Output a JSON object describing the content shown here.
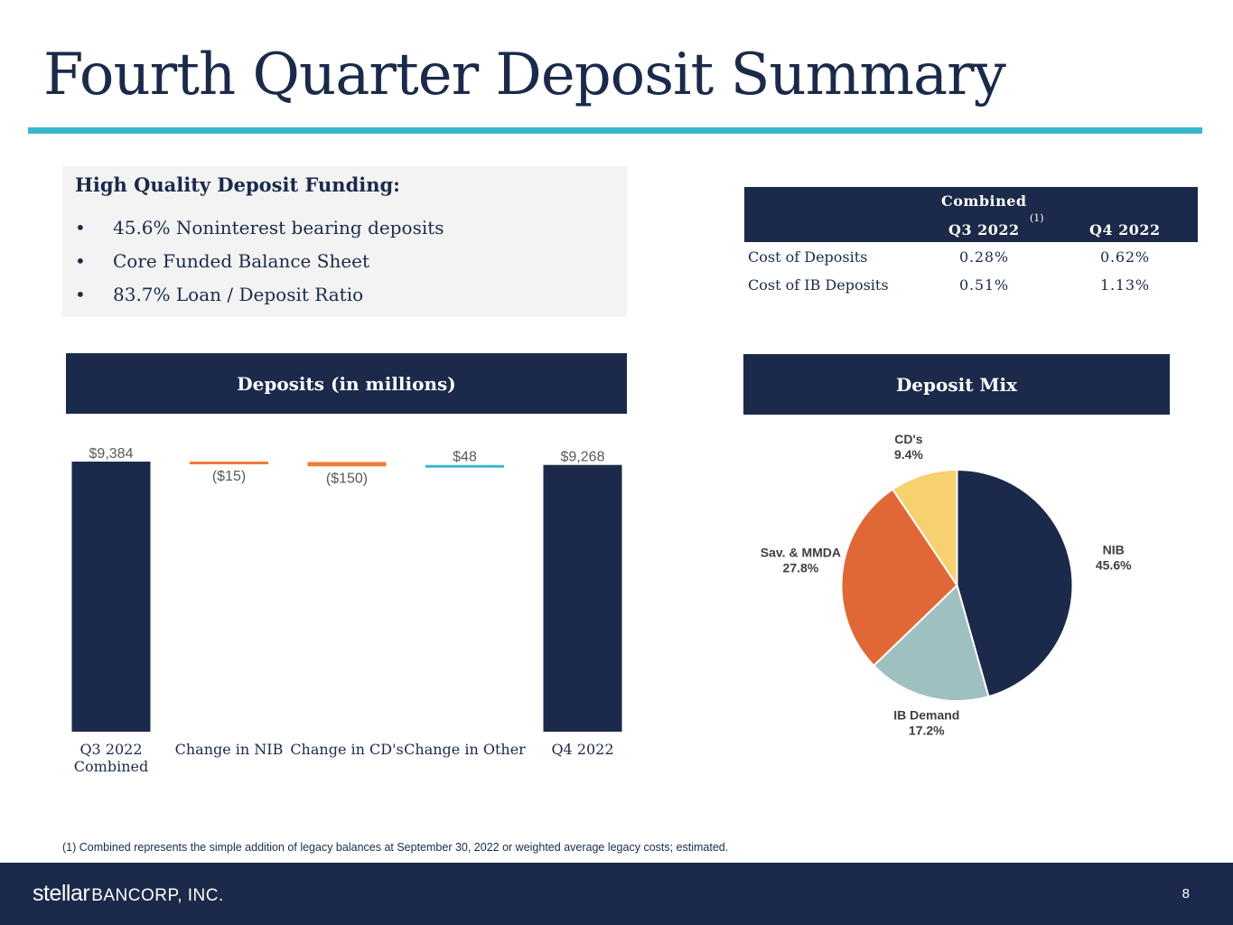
{
  "title": "Fourth Quarter Deposit Summary",
  "highlights": {
    "heading": "High Quality Deposit Funding:",
    "bullet_symbol": "•",
    "items": [
      "45.6% Noninterest bearing deposits",
      "Core Funded Balance Sheet",
      "83.7% Loan / Deposit Ratio"
    ]
  },
  "cost_table": {
    "header_top": "Combined",
    "col1": "Q3 2022",
    "col1_note": "(1)",
    "col2": "Q4 2022",
    "rows": [
      {
        "label": "Cost of Deposits",
        "q3": "0.28%",
        "q4": "0.62%"
      },
      {
        "label": "Cost of IB Deposits",
        "q3": "0.51%",
        "q4": "1.13%"
      }
    ]
  },
  "deposits_header": "Deposits (in millions)",
  "mix_header": "Deposit Mix",
  "chart_data": [
    {
      "type": "bar",
      "subtype": "waterfall",
      "title": "Deposits (in millions)",
      "categories": [
        "Q3 2022 Combined",
        "Change in NIB",
        "Change in CD's",
        "Change in Other",
        "Q4 2022"
      ],
      "category_lines": [
        [
          "Q3 2022",
          "Combined"
        ],
        [
          "Change in NIB"
        ],
        [
          "Change in CD's"
        ],
        [
          "Change in Other"
        ],
        [
          "Q4 2022"
        ]
      ],
      "values": [
        9384,
        -15,
        -150,
        48,
        9268
      ],
      "kinds": [
        "total",
        "delta",
        "delta",
        "delta",
        "total"
      ],
      "labels": [
        "$9,384",
        "($15)",
        "($150)",
        "$48",
        "$9,268"
      ],
      "colors": [
        "#1b2a4a",
        "#ee7d31",
        "#ee7d31",
        "#3bb6cf",
        "#1b2a4a"
      ]
    },
    {
      "type": "pie",
      "title": "Deposit Mix",
      "slices": [
        {
          "name": "NIB",
          "value": 45.6,
          "label": "45.6%",
          "color": "#1b2a4a"
        },
        {
          "name": "IB Demand",
          "value": 17.2,
          "label": "17.2%",
          "color": "#9fc0c0"
        },
        {
          "name": "Sav. & MMDA",
          "value": 27.8,
          "label": "27.8%",
          "color": "#df6836"
        },
        {
          "name": "CD's",
          "value": 9.4,
          "label": "9.4%",
          "color": "#f7d06f"
        }
      ]
    }
  ],
  "footnote": "(1) Combined represents the simple addition of legacy balances at September 30, 2022 or weighted average legacy costs; estimated.",
  "footer": {
    "logo_word1": "stellar",
    "logo_word2": "BANCORP, INC.",
    "page_number": "8"
  }
}
